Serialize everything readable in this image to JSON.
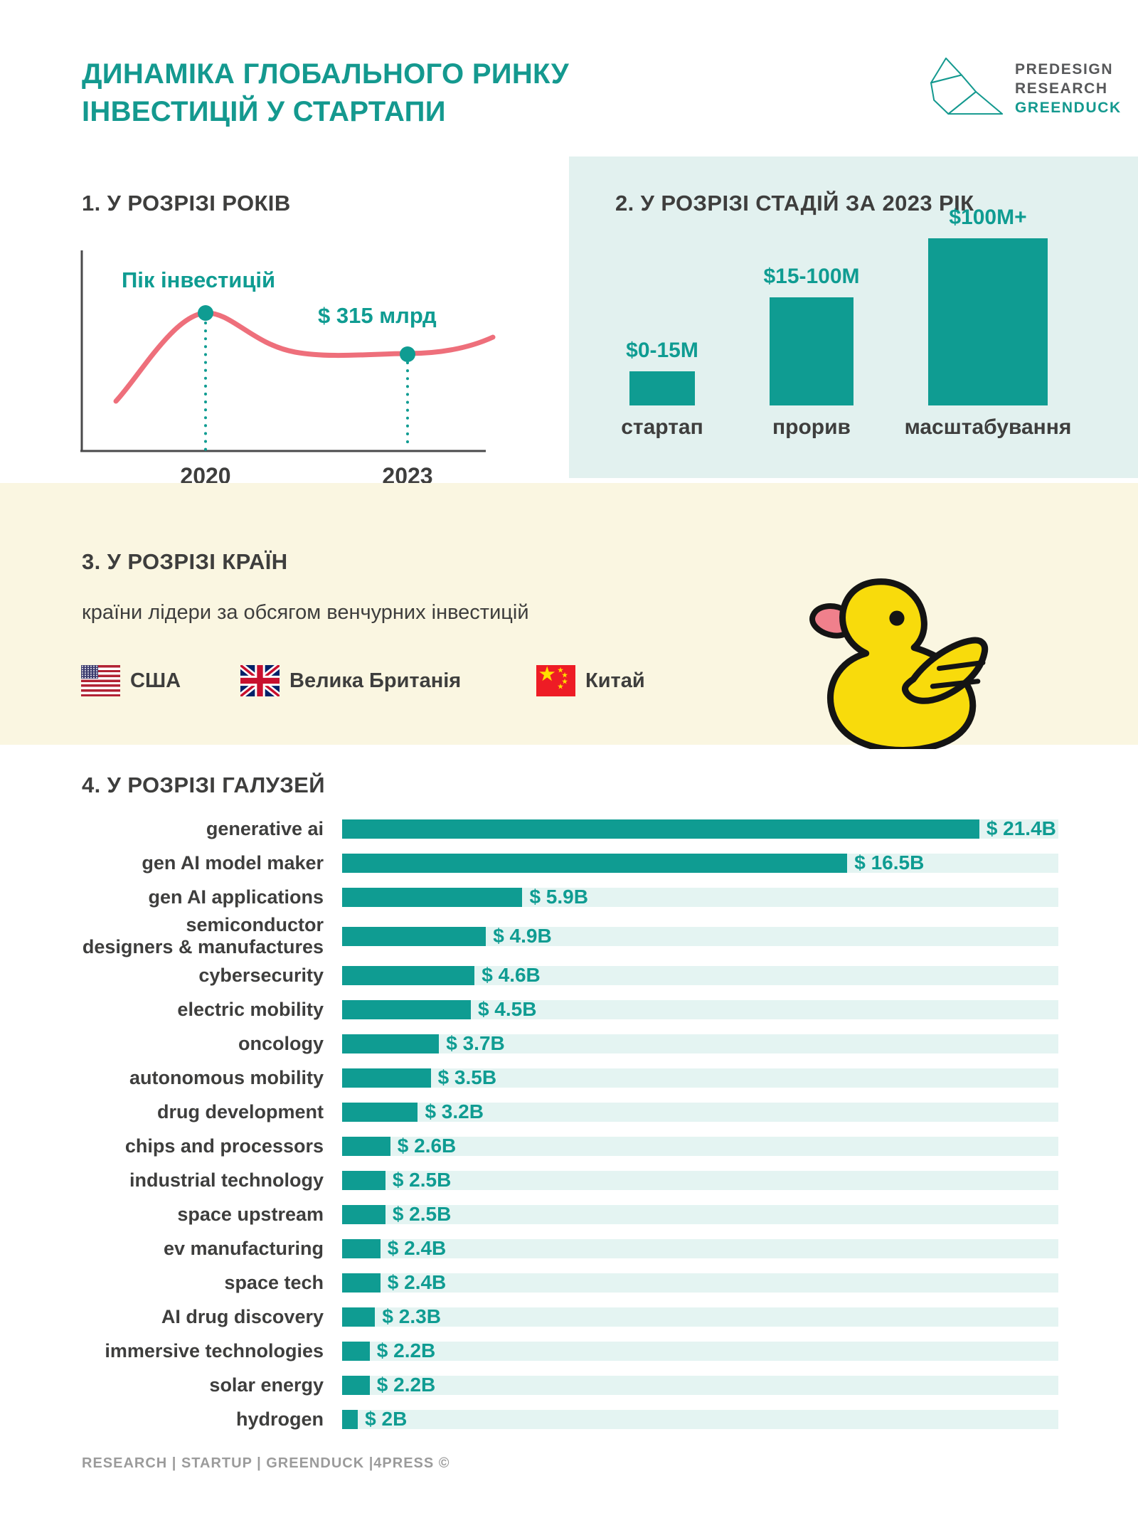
{
  "colors": {
    "accent_teal": "#0F9C92",
    "title_teal": "#14998F",
    "dark_text": "#3E3E3D",
    "line_salmon": "#EE6F7B",
    "mint_panel": "#E2F1EF",
    "bar_track": "#E4F4F2",
    "cream_band": "#FAF6E1",
    "footer_gray": "#9B9B9B",
    "logo_gray": "#57585A",
    "duck_yellow": "#F8DB0C",
    "duck_beak": "#F0808C"
  },
  "header": {
    "title_line1": "ДИНАМІКА ГЛОБАЛЬНОГО РИНКУ",
    "title_line2": "ІНВЕСТИЦІЙ У СТАРТАПИ",
    "logo": {
      "line1": "PREDESIGN",
      "line2": "RESEARCH",
      "line3": "GREENDUCK"
    }
  },
  "section1": {
    "heading": "1. У РОЗРІЗІ РОКІВ",
    "peak_annotation": "Пік інвестицій",
    "value_annotation": "$ 315 млрд",
    "x_ticks": [
      "2020",
      "2023"
    ]
  },
  "section2": {
    "heading": "2. У РОЗРІЗІ СТАДІЙ ЗА 2023 РІК",
    "stages": [
      {
        "value_label": "$0-15M",
        "name": "стартап"
      },
      {
        "value_label": "$15-100M",
        "name": "прорив"
      },
      {
        "value_label": "$100M+",
        "name": "масштабування"
      }
    ]
  },
  "section3": {
    "heading": "3. У РОЗРІЗІ КРАЇН",
    "subtitle": "країни лідери за обсягом венчурних інвестицій",
    "countries": [
      {
        "flag": "us",
        "label": "США"
      },
      {
        "flag": "uk",
        "label": "Велика Британія"
      },
      {
        "flag": "cn",
        "label": "Китай"
      }
    ]
  },
  "section4": {
    "heading": "4. У РОЗРІЗІ ГАЛУЗЕЙ",
    "industries": [
      {
        "label": "generative ai",
        "value": 21.4,
        "value_label": "$ 21.4B"
      },
      {
        "label": "gen AI model maker",
        "value": 16.5,
        "value_label": "$ 16.5B"
      },
      {
        "label": "gen AI applications",
        "value": 5.9,
        "value_label": "$ 5.9B"
      },
      {
        "label": "semiconductor\ndesigners & manufactures",
        "value": 4.9,
        "value_label": "$ 4.9B"
      },
      {
        "label": "cybersecurity",
        "value": 4.6,
        "value_label": "$ 4.6B"
      },
      {
        "label": "electric mobility",
        "value": 4.5,
        "value_label": "$ 4.5B"
      },
      {
        "label": "oncology",
        "value": 3.7,
        "value_label": "$ 3.7B"
      },
      {
        "label": "autonomous mobility",
        "value": 3.5,
        "value_label": "$ 3.5B"
      },
      {
        "label": "drug development",
        "value": 3.2,
        "value_label": "$ 3.2B"
      },
      {
        "label": "chips and processors",
        "value": 2.6,
        "value_label": "$ 2.6B"
      },
      {
        "label": "industrial technology",
        "value": 2.5,
        "value_label": "$ 2.5B"
      },
      {
        "label": "space upstream",
        "value": 2.5,
        "value_label": "$ 2.5B"
      },
      {
        "label": "ev manufacturing",
        "value": 2.4,
        "value_label": "$ 2.4B"
      },
      {
        "label": "space tech",
        "value": 2.4,
        "value_label": "$ 2.4B"
      },
      {
        "label": "AI drug discovery",
        "value": 2.3,
        "value_label": "$ 2.3B"
      },
      {
        "label": "immersive technologies",
        "value": 2.2,
        "value_label": "$ 2.2B"
      },
      {
        "label": "solar energy",
        "value": 2.2,
        "value_label": "$ 2.2B"
      },
      {
        "label": "hydrogen",
        "value": 2,
        "value_label": "$ 2B"
      }
    ]
  },
  "footer": {
    "text": "RESEARCH | STARTUP | GREENDUCK |4PRESS ©"
  },
  "chart_data": [
    {
      "type": "line",
      "title": "1. У РОЗРІЗІ РОКІВ",
      "x_ticks": [
        "2020",
        "2023"
      ],
      "annotations": [
        {
          "x": "2020",
          "label": "Пік інвестицій",
          "meaning": "investment peak"
        },
        {
          "x": "2023",
          "label": "$ 315 млрд",
          "value_usd_bln": 315
        }
      ],
      "shape": "curve rises to a peak at 2020, declines and plateaus near $315 bln through 2023, slight rise at the end",
      "grid": false,
      "y_axis_labels": []
    },
    {
      "type": "bar",
      "title": "2. У РОЗРІЗІ СТАДІЙ ЗА 2023 РІК",
      "categories": [
        "стартап",
        "прорив",
        "масштабування"
      ],
      "value_labels": [
        "$0-15M",
        "$15-100M",
        "$100M+"
      ],
      "relative_heights": [
        1,
        3.2,
        4.9
      ],
      "grid": false
    },
    {
      "type": "bar",
      "orientation": "horizontal",
      "title": "4. У РОЗРІЗІ ГАЛУЗЕЙ",
      "unit": "$B",
      "categories": [
        "generative ai",
        "gen AI model maker",
        "gen AI applications",
        "semiconductor designers & manufactures",
        "cybersecurity",
        "electric mobility",
        "oncology",
        "autonomous mobility",
        "drug development",
        "chips and processors",
        "industrial technology",
        "space upstream",
        "ev manufacturing",
        "space tech",
        "AI drug discovery",
        "immersive technologies",
        "solar energy",
        "hydrogen"
      ],
      "values": [
        21.4,
        16.5,
        5.9,
        4.9,
        4.6,
        4.5,
        3.7,
        3.5,
        3.2,
        2.6,
        2.5,
        2.5,
        2.4,
        2.4,
        2.3,
        2.2,
        2.2,
        2
      ],
      "value_labels": [
        "$ 21.4B",
        "$ 16.5B",
        "$ 5.9B",
        "$ 4.9B",
        "$ 4.6B",
        "$ 4.5B",
        "$ 3.7B",
        "$ 3.5B",
        "$ 3.2B",
        "$ 2.6B",
        "$ 2.5B",
        "$ 2.5B",
        "$ 2.4B",
        "$ 2.4B",
        "$ 2.3B",
        "$ 2.2B",
        "$ 2.2B",
        "$ 2B"
      ],
      "grid": false
    }
  ]
}
